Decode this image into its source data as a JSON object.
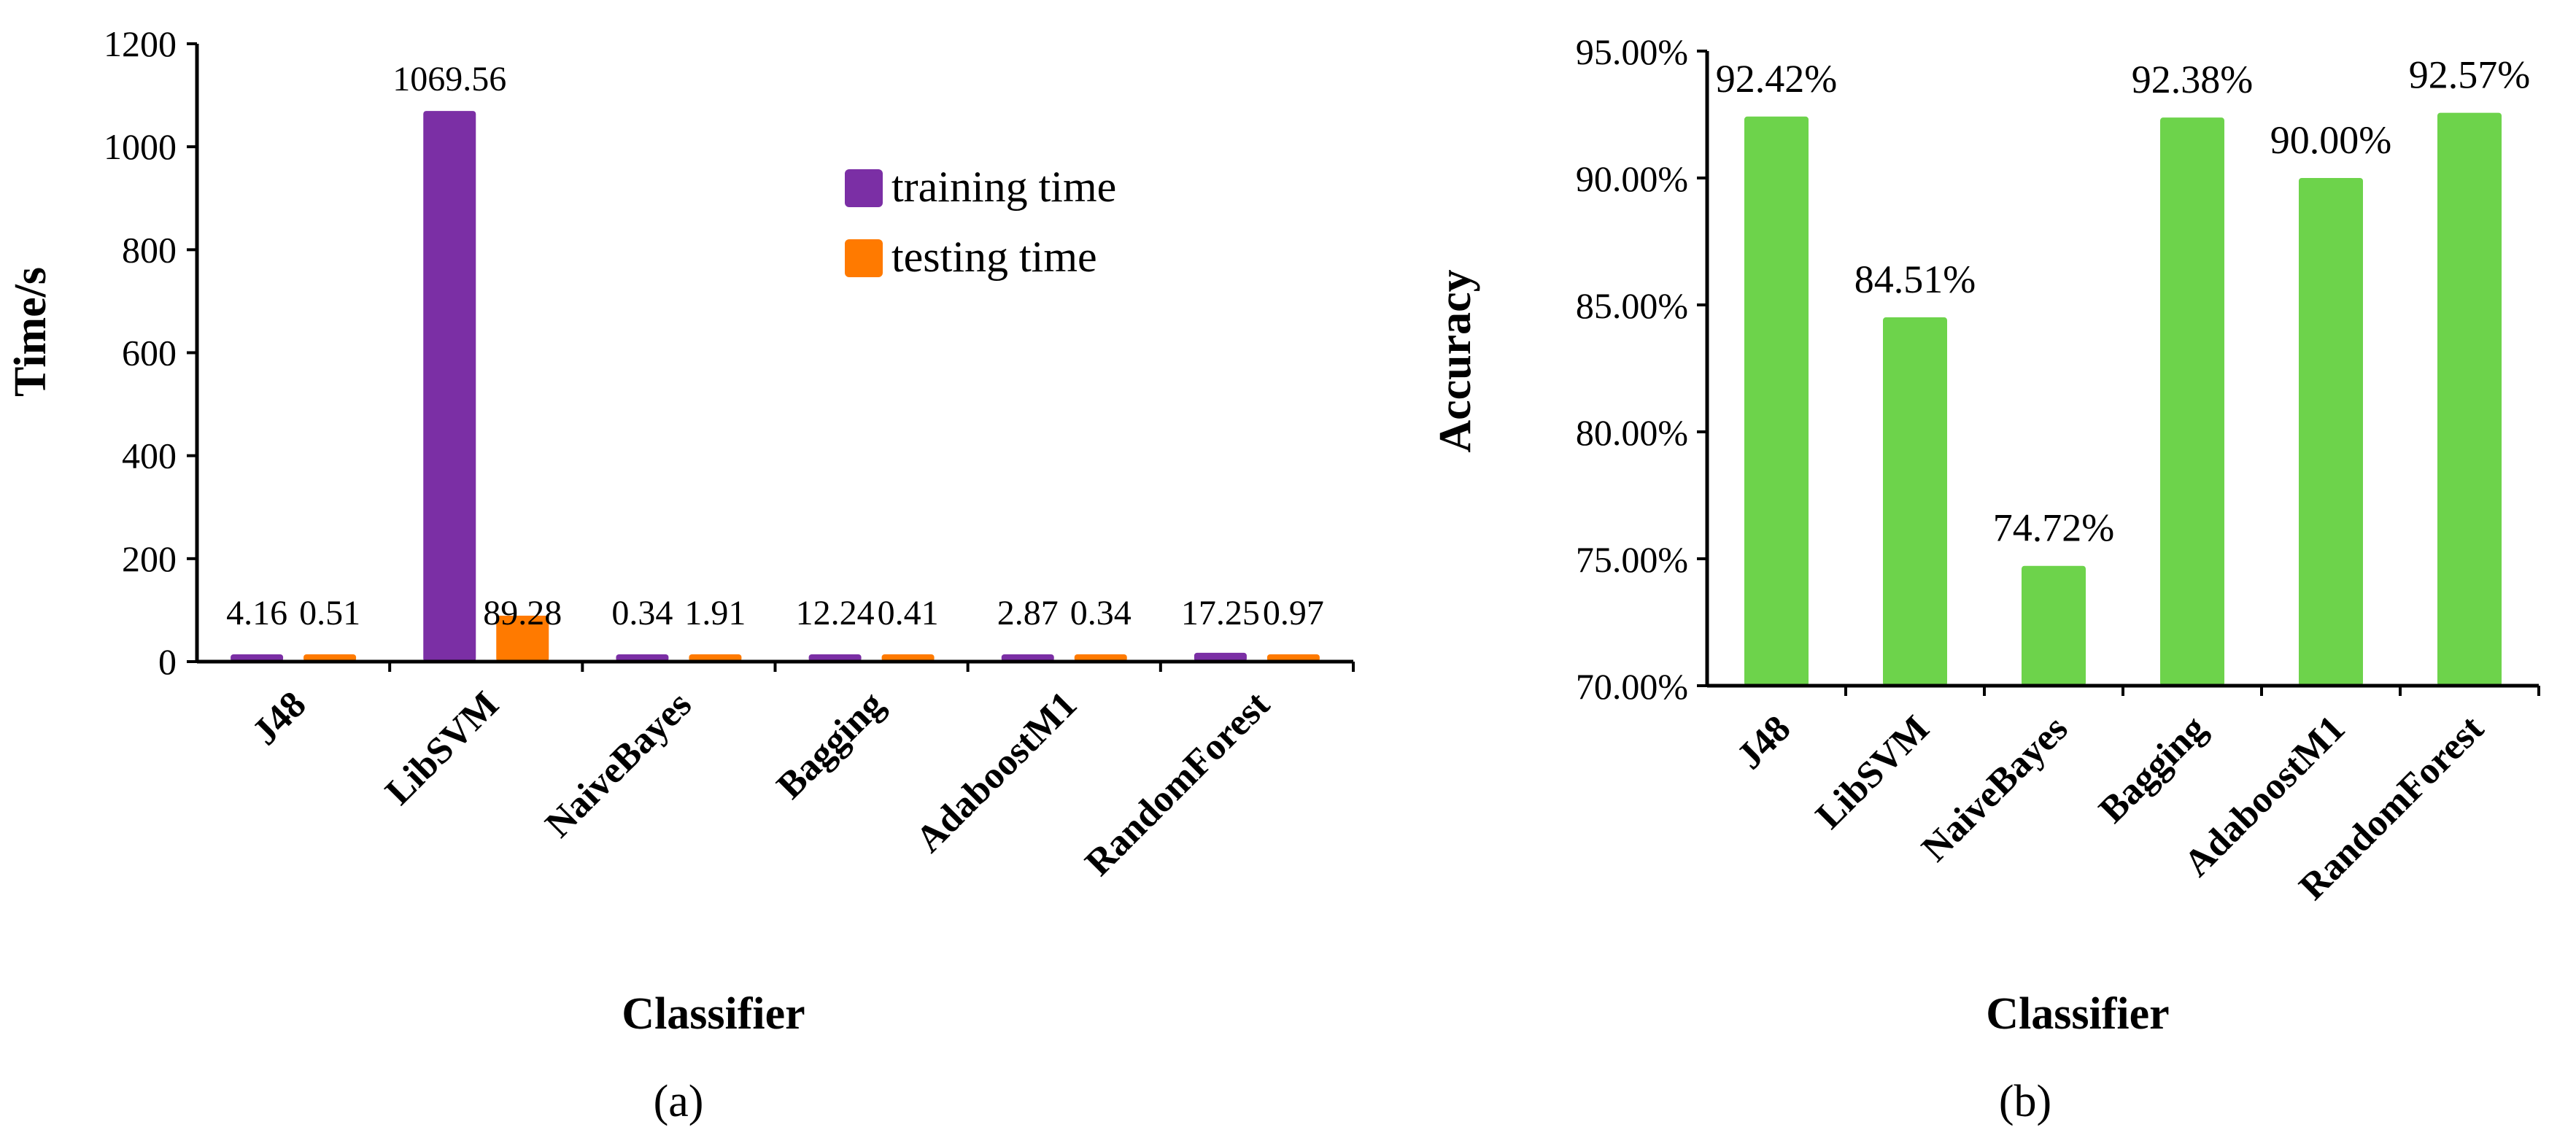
{
  "chart_data": [
    {
      "type": "bar",
      "panel_label": "(a)",
      "xlabel": "Classifier",
      "ylabel": "Time/s",
      "ylim": [
        0,
        1200
      ],
      "yticks": [
        "0",
        "200",
        "400",
        "600",
        "800",
        "1000",
        "1200"
      ],
      "categories": [
        "J48",
        "LibSVM",
        "NaiveBayes",
        "Bagging",
        "AdaboostM1",
        "RandomForest"
      ],
      "legend_position": "top-right",
      "series": [
        {
          "name": "training time",
          "color": "#7B2FA5",
          "values": [
            4.16,
            1069.56,
            0.34,
            12.24,
            2.87,
            17.25
          ],
          "labels": [
            "4.16",
            "1069.56",
            "0.34",
            "12.24",
            "2.87",
            "17.25"
          ]
        },
        {
          "name": "testing time",
          "color": "#FF7A00",
          "values": [
            0.51,
            89.28,
            1.91,
            0.41,
            0.34,
            0.97
          ],
          "labels": [
            "0.51",
            "89.28",
            "1.91",
            "0.41",
            "0.34",
            "0.97"
          ]
        }
      ]
    },
    {
      "type": "bar",
      "panel_label": "(b)",
      "xlabel": "Classifier",
      "ylabel": "Accuracy",
      "ylim": [
        70,
        95
      ],
      "yticks": [
        "70.00%",
        "75.00%",
        "80.00%",
        "85.00%",
        "90.00%",
        "95.00%"
      ],
      "categories": [
        "J48",
        "LibSVM",
        "NaiveBayes",
        "Bagging",
        "AdaboostM1",
        "RandomForest"
      ],
      "series": [
        {
          "color": "#6DD34B",
          "values": [
            92.42,
            84.51,
            74.72,
            92.38,
            90.0,
            92.57
          ],
          "labels": [
            "92.42%",
            "84.51%",
            "74.72%",
            "92.38%",
            "90.00%",
            "92.57%"
          ]
        }
      ]
    }
  ]
}
